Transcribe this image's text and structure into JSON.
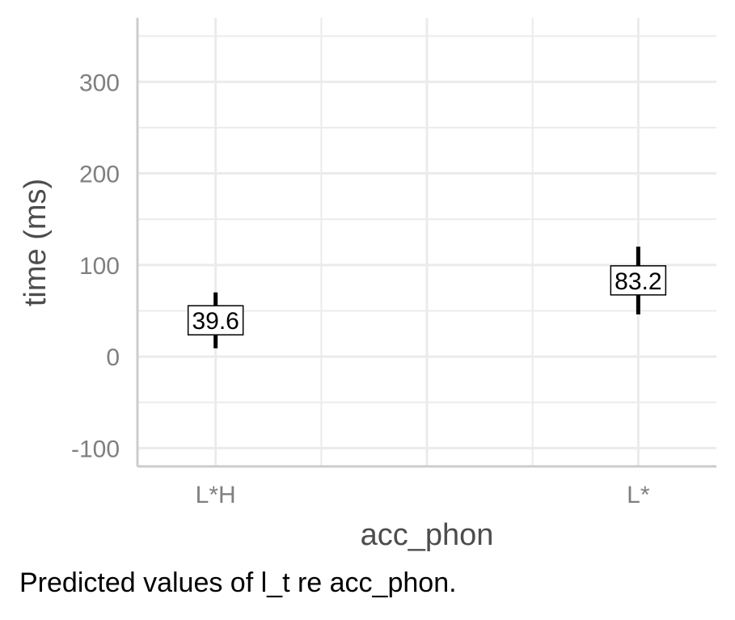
{
  "chart_data": {
    "type": "errorbar",
    "xlabel": "acc_phon",
    "ylabel": "time (ms)",
    "categories": [
      "L*H",
      "",
      "L*"
    ],
    "ylim": [
      -120,
      370
    ],
    "yticks": [
      -100,
      0,
      100,
      200,
      300
    ],
    "grid": true,
    "points": [
      {
        "category": "L*H",
        "value": 39.6,
        "low": 9,
        "high": 70,
        "label": "39.6"
      },
      {
        "category": "L*",
        "value": 83.2,
        "low": 46,
        "high": 120,
        "label": "83.2"
      }
    ],
    "colors": {
      "grid": "#ebebeb",
      "axis": "#cccccc",
      "tick_text": "#7f7f7f",
      "axis_title": "#4d4d4d",
      "marks": "#000000"
    }
  },
  "caption": "Predicted values of l_t re acc_phon."
}
